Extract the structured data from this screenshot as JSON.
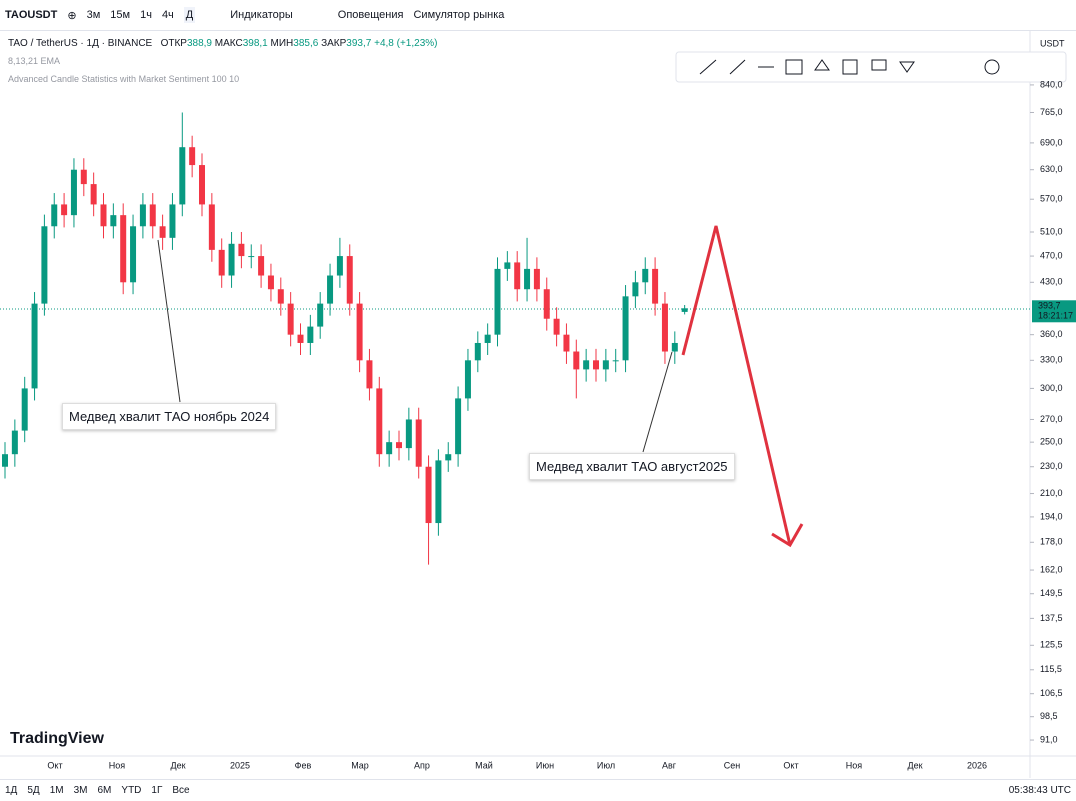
{
  "toolbar": {
    "symbol": "TAOUSDT",
    "intervals": [
      "3м",
      "15м",
      "1ч",
      "4ч",
      "Д"
    ],
    "indicators": "Индикаторы",
    "alerts": "Оповещения",
    "replay": "Симулятор рынка"
  },
  "legend": {
    "title": "TAO / TetherUS · 1Д · BINANCE",
    "open_label": "ОТКР",
    "open": "388,9",
    "high_label": "МАКС",
    "high": "398,1",
    "low_label": "МИН",
    "low": "385,6",
    "close_label": "ЗАКР",
    "close": "393,7",
    "change": "+4,8 (+1,23%)",
    "indicator1": "8,13,21 EMA",
    "indicator2": "Advanced Candle Statistics with Market Sentiment 100 10"
  },
  "chart_data": {
    "type": "candlestick",
    "log_scale": true,
    "currency": "USDT",
    "up_color": "#089981",
    "down_color": "#f23645",
    "ylim": [
      86.5,
      1012
    ],
    "yticks": [
      {
        "value": 840,
        "label": "840,0"
      },
      {
        "value": 765,
        "label": "765,0"
      },
      {
        "value": 690,
        "label": "690,0"
      },
      {
        "value": 630,
        "label": "630,0"
      },
      {
        "value": 570,
        "label": "570,0"
      },
      {
        "value": 510,
        "label": "510,0"
      },
      {
        "value": 470,
        "label": "470,0"
      },
      {
        "value": 430,
        "label": "430,0"
      },
      {
        "value": 360,
        "label": "360,0"
      },
      {
        "value": 330,
        "label": "330,0"
      },
      {
        "value": 300,
        "label": "300,0"
      },
      {
        "value": 270,
        "label": "270,0"
      },
      {
        "value": 250,
        "label": "250,0"
      },
      {
        "value": 230,
        "label": "230,0"
      },
      {
        "value": 210,
        "label": "210,0"
      },
      {
        "value": 194,
        "label": "194,0"
      },
      {
        "value": 178,
        "label": "178,0"
      },
      {
        "value": 162,
        "label": "162,0"
      },
      {
        "value": 149.5,
        "label": "149,5"
      },
      {
        "value": 137.5,
        "label": "137,5"
      },
      {
        "value": 125.5,
        "label": "125,5"
      },
      {
        "value": 115.5,
        "label": "115,5"
      },
      {
        "value": 106.5,
        "label": "106,5"
      },
      {
        "value": 98.5,
        "label": "98,5"
      },
      {
        "value": 91,
        "label": "91,0"
      }
    ],
    "last_price": {
      "value": 393.7,
      "label": "393,7"
    },
    "countdown": "18:21:17",
    "x_labels": [
      "Окт",
      "Ноя",
      "Дек",
      "2025",
      "Фев",
      "Мар",
      "Апр",
      "Май",
      "Июн",
      "Июл",
      "Авг",
      "Сен",
      "Окт",
      "Ноя",
      "Дек",
      "2026"
    ],
    "candles": [
      [
        230,
        250,
        221,
        240
      ],
      [
        240,
        270,
        230,
        260
      ],
      [
        260,
        312,
        250,
        300
      ],
      [
        300,
        416,
        288,
        400
      ],
      [
        400,
        541,
        384,
        520
      ],
      [
        520,
        582,
        499,
        560
      ],
      [
        560,
        582,
        518,
        540
      ],
      [
        540,
        655,
        518,
        630
      ],
      [
        630,
        655,
        576,
        600
      ],
      [
        600,
        624,
        538,
        560
      ],
      [
        560,
        582,
        499,
        520
      ],
      [
        520,
        562,
        499,
        540
      ],
      [
        540,
        562,
        413,
        430
      ],
      [
        430,
        541,
        413,
        520
      ],
      [
        520,
        582,
        499,
        560
      ],
      [
        560,
        582,
        499,
        520
      ],
      [
        520,
        541,
        480,
        500
      ],
      [
        500,
        582,
        480,
        560
      ],
      [
        560,
        765,
        538,
        680
      ],
      [
        680,
        707,
        614,
        640
      ],
      [
        640,
        666,
        538,
        560
      ],
      [
        560,
        582,
        461,
        480
      ],
      [
        480,
        499,
        422,
        440
      ],
      [
        440,
        510,
        422,
        490
      ],
      [
        490,
        510,
        451,
        470
      ],
      [
        470,
        489,
        451,
        470
      ],
      [
        470,
        489,
        422,
        440
      ],
      [
        440,
        458,
        403,
        420
      ],
      [
        420,
        437,
        384,
        400
      ],
      [
        400,
        416,
        346,
        360
      ],
      [
        360,
        374,
        336,
        350
      ],
      [
        350,
        385,
        336,
        370
      ],
      [
        370,
        416,
        355,
        400
      ],
      [
        400,
        458,
        384,
        440
      ],
      [
        440,
        500,
        422,
        470
      ],
      [
        470,
        489,
        384,
        400
      ],
      [
        400,
        416,
        317,
        330
      ],
      [
        330,
        343,
        288,
        300
      ],
      [
        300,
        312,
        230,
        240
      ],
      [
        240,
        260,
        230,
        250
      ],
      [
        250,
        260,
        235,
        245
      ],
      [
        245,
        281,
        235,
        270
      ],
      [
        270,
        281,
        221,
        230
      ],
      [
        230,
        239,
        165,
        190
      ],
      [
        190,
        244,
        182,
        235
      ],
      [
        235,
        250,
        226,
        240
      ],
      [
        240,
        302,
        230,
        290
      ],
      [
        290,
        343,
        278,
        330
      ],
      [
        330,
        364,
        317,
        350
      ],
      [
        350,
        374,
        336,
        360
      ],
      [
        360,
        468,
        346,
        450
      ],
      [
        450,
        478,
        432,
        460
      ],
      [
        460,
        478,
        403,
        420
      ],
      [
        420,
        500,
        403,
        450
      ],
      [
        450,
        468,
        403,
        420
      ],
      [
        420,
        437,
        365,
        380
      ],
      [
        380,
        395,
        346,
        360
      ],
      [
        360,
        374,
        326,
        340
      ],
      [
        340,
        354,
        290,
        320
      ],
      [
        320,
        343,
        307,
        330
      ],
      [
        330,
        343,
        307,
        320
      ],
      [
        320,
        343,
        307,
        330
      ],
      [
        330,
        343,
        317,
        330
      ],
      [
        330,
        426,
        317,
        410
      ],
      [
        410,
        447,
        394,
        430
      ],
      [
        430,
        468,
        413,
        450
      ],
      [
        450,
        468,
        384,
        400
      ],
      [
        400,
        416,
        326,
        340
      ],
      [
        340,
        364,
        326,
        350
      ],
      [
        388.9,
        398.1,
        385.6,
        393.7
      ]
    ]
  },
  "annotations": [
    "Медвед хвалит ТАО ноябрь 2024",
    "Медвед хвалит ТАО август2025"
  ],
  "logo": "TradingView",
  "bottom_bar": {
    "ranges": [
      "1Д",
      "5Д",
      "1М",
      "3М",
      "6М",
      "YTD",
      "1Г",
      "Все"
    ],
    "time": "05:38:43 UTC"
  }
}
